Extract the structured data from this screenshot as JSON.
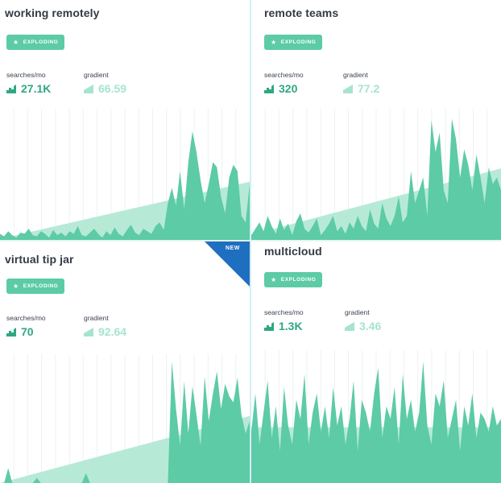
{
  "colors": {
    "accent": "#5ccba6",
    "area_fill": "#5ccba6",
    "trend_fill": "#b6ead7",
    "searches_text": "#2fa784",
    "gradient_text": "#a6e4cf",
    "ribbon": "#1f6fc0"
  },
  "icons": {
    "badge_icon": "star-icon",
    "searches_icon": "bar-chart-icon",
    "gradient_icon": "trend-icon"
  },
  "cards": [
    {
      "title": "working remotely",
      "badge": "EXPLODING",
      "searches_label": "searches/mo",
      "searches_value": "27.1K",
      "gradient_label": "gradient",
      "gradient_value": "66.59",
      "is_new": false,
      "trend_start": 0.02,
      "trend_end": 0.45,
      "series": [
        0.06,
        0.04,
        0.08,
        0.05,
        0.03,
        0.07,
        0.06,
        0.1,
        0.05,
        0.04,
        0.08,
        0.06,
        0.03,
        0.09,
        0.05,
        0.07,
        0.04,
        0.08,
        0.06,
        0.12,
        0.05,
        0.04,
        0.07,
        0.1,
        0.06,
        0.03,
        0.08,
        0.05,
        0.11,
        0.06,
        0.04,
        0.09,
        0.13,
        0.07,
        0.05,
        0.1,
        0.08,
        0.06,
        0.12,
        0.15,
        0.09,
        0.3,
        0.42,
        0.28,
        0.55,
        0.25,
        0.62,
        0.86,
        0.7,
        0.48,
        0.3,
        0.45,
        0.62,
        0.58,
        0.35,
        0.22,
        0.5,
        0.6,
        0.55,
        0.2,
        0.15,
        0.45
      ]
    },
    {
      "title": "remote teams",
      "badge": "EXPLODING",
      "searches_label": "searches/mo",
      "searches_value": "320",
      "gradient_label": "gradient",
      "gradient_value": "77.2",
      "is_new": false,
      "trend_start": 0.05,
      "trend_end": 0.55,
      "series": [
        0.05,
        0.1,
        0.15,
        0.08,
        0.2,
        0.12,
        0.06,
        0.18,
        0.09,
        0.14,
        0.05,
        0.16,
        0.22,
        0.1,
        0.07,
        0.12,
        0.18,
        0.05,
        0.09,
        0.14,
        0.2,
        0.08,
        0.12,
        0.06,
        0.15,
        0.1,
        0.2,
        0.12,
        0.08,
        0.25,
        0.14,
        0.1,
        0.3,
        0.18,
        0.12,
        0.2,
        0.35,
        0.15,
        0.2,
        0.55,
        0.3,
        0.4,
        0.5,
        0.2,
        0.95,
        0.7,
        0.85,
        0.4,
        0.3,
        0.96,
        0.8,
        0.5,
        0.72,
        0.6,
        0.4,
        0.68,
        0.5,
        0.3,
        0.58,
        0.45,
        0.5,
        0.4
      ]
    },
    {
      "title": "virtual tip jar",
      "badge": "EXPLODING",
      "searches_label": "searches/mo",
      "searches_value": "70",
      "gradient_label": "gradient",
      "gradient_value": "92.64",
      "is_new": true,
      "new_label": "NEW",
      "trend_start": 0.0,
      "trend_end": 0.52,
      "series": [
        0,
        0,
        0.12,
        0,
        0,
        0,
        0,
        0,
        0,
        0.04,
        0,
        0,
        0,
        0,
        0,
        0,
        0,
        0,
        0,
        0,
        0,
        0.08,
        0,
        0,
        0,
        0,
        0,
        0,
        0,
        0,
        0,
        0,
        0,
        0,
        0,
        0,
        0,
        0,
        0,
        0,
        0,
        0,
        0.98,
        0.6,
        0.3,
        0.82,
        0.4,
        0.78,
        0.55,
        0.3,
        0.86,
        0.5,
        0.72,
        0.9,
        0.6,
        0.8,
        0.7,
        0.65,
        0.85,
        0.55,
        0.4,
        0.5
      ]
    },
    {
      "title": "multicloud",
      "badge": "EXPLODING",
      "searches_label": "searches/mo",
      "searches_value": "1.3K",
      "gradient_label": "gradient",
      "gradient_value": "3.46",
      "is_new": false,
      "trend_start": 0.42,
      "trend_end": 0.42,
      "series": [
        0.4,
        0.7,
        0.3,
        0.55,
        0.8,
        0.35,
        0.6,
        0.25,
        0.75,
        0.45,
        0.3,
        0.65,
        0.5,
        0.85,
        0.3,
        0.55,
        0.7,
        0.4,
        0.6,
        0.35,
        0.75,
        0.45,
        0.6,
        0.3,
        0.5,
        0.8,
        0.25,
        0.65,
        0.55,
        0.4,
        0.7,
        0.9,
        0.35,
        0.6,
        0.5,
        0.75,
        0.3,
        0.85,
        0.5,
        0.65,
        0.4,
        0.55,
        0.95,
        0.45,
        0.3,
        0.7,
        0.6,
        0.8,
        0.35,
        0.5,
        0.65,
        0.25,
        0.6,
        0.45,
        0.7,
        0.35,
        0.55,
        0.5,
        0.4,
        0.6,
        0.45,
        0.5
      ]
    }
  ]
}
